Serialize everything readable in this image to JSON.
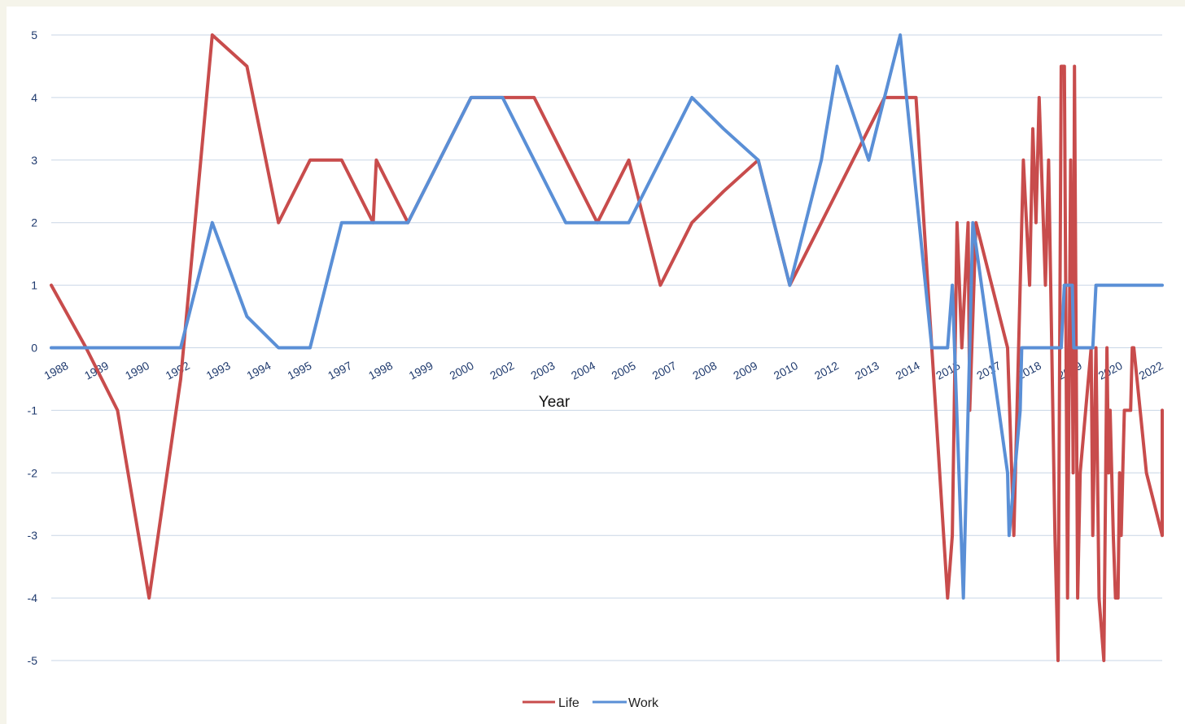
{
  "chart_data": {
    "type": "line",
    "title": "",
    "xlabel": "Year",
    "ylabel": "",
    "ylim": [
      -5,
      5
    ],
    "yticks": [
      5,
      4,
      3,
      2,
      1,
      0,
      -1,
      -2,
      -3,
      -4,
      -5
    ],
    "xlim": [
      1988,
      2023.2
    ],
    "xtick_labels": [
      {
        "label": "1988",
        "value": 1988.0
      },
      {
        "label": "1989",
        "value": 1989.28
      },
      {
        "label": "1990",
        "value": 1990.57
      },
      {
        "label": "1992",
        "value": 1991.85
      },
      {
        "label": "1993",
        "value": 1993.14
      },
      {
        "label": "1994",
        "value": 1994.42
      },
      {
        "label": "1995",
        "value": 1995.71
      },
      {
        "label": "1997",
        "value": 1996.99
      },
      {
        "label": "1998",
        "value": 1998.28
      },
      {
        "label": "1999",
        "value": 1999.56
      },
      {
        "label": "2000",
        "value": 2000.85
      },
      {
        "label": "2002",
        "value": 2002.13
      },
      {
        "label": "2003",
        "value": 2003.42
      },
      {
        "label": "2004",
        "value": 2004.7
      },
      {
        "label": "2005",
        "value": 2005.98
      },
      {
        "label": "2007",
        "value": 2007.27
      },
      {
        "label": "2008",
        "value": 2008.55
      },
      {
        "label": "2009",
        "value": 2009.84
      },
      {
        "label": "2010",
        "value": 2011.12
      },
      {
        "label": "2012",
        "value": 2012.41
      },
      {
        "label": "2013",
        "value": 2013.69
      },
      {
        "label": "2014",
        "value": 2014.98
      },
      {
        "label": "2015",
        "value": 2016.26
      },
      {
        "label": "2017",
        "value": 2017.55
      },
      {
        "label": "2018",
        "value": 2018.83
      },
      {
        "label": "2019",
        "value": 2020.12
      },
      {
        "label": "2020",
        "value": 2021.4
      },
      {
        "label": "2022",
        "value": 2022.69
      }
    ],
    "legend_position": "bottom-center",
    "grid": true,
    "series": [
      {
        "name": "Life",
        "color": "#c84c4c",
        "points": [
          [
            1988.0,
            1
          ],
          [
            1989.1,
            0
          ],
          [
            1990.1,
            -1
          ],
          [
            1991.1,
            -4
          ],
          [
            1992.1,
            -0.5
          ],
          [
            1993.1,
            5
          ],
          [
            1994.2,
            4.5
          ],
          [
            1995.2,
            2
          ],
          [
            1996.2,
            3
          ],
          [
            1997.2,
            3
          ],
          [
            1998.2,
            2
          ],
          [
            1998.3,
            3
          ],
          [
            1999.3,
            2
          ],
          [
            2000.3,
            3
          ],
          [
            2001.3,
            4
          ],
          [
            2002.3,
            4
          ],
          [
            2003.3,
            4
          ],
          [
            2004.3,
            3
          ],
          [
            2005.3,
            2
          ],
          [
            2006.3,
            3
          ],
          [
            2007.3,
            1
          ],
          [
            2008.3,
            2
          ],
          [
            2009.3,
            2.5
          ],
          [
            2010.4,
            3
          ],
          [
            2011.4,
            1
          ],
          [
            2012.4,
            2
          ],
          [
            2013.4,
            3
          ],
          [
            2014.4,
            4
          ],
          [
            2015.4,
            4
          ],
          [
            2016.4,
            -4
          ],
          [
            2016.55,
            -3
          ],
          [
            2016.7,
            2
          ],
          [
            2016.85,
            0
          ],
          [
            2017.05,
            2
          ],
          [
            2017.1,
            -1
          ],
          [
            2017.3,
            2
          ],
          [
            2018.3,
            0
          ],
          [
            2018.5,
            -3
          ],
          [
            2018.8,
            3
          ],
          [
            2019.0,
            1
          ],
          [
            2019.1,
            3.5
          ],
          [
            2019.2,
            2
          ],
          [
            2019.3,
            4
          ],
          [
            2019.5,
            1
          ],
          [
            2019.6,
            3
          ],
          [
            2019.8,
            -3
          ],
          [
            2019.9,
            -5
          ],
          [
            2020.0,
            4.5
          ],
          [
            2020.1,
            4.5
          ],
          [
            2020.2,
            -4
          ],
          [
            2020.3,
            3
          ],
          [
            2020.38,
            -2
          ],
          [
            2020.42,
            4.5
          ],
          [
            2020.52,
            -4
          ],
          [
            2020.6,
            -2
          ],
          [
            2020.95,
            0
          ],
          [
            2021.0,
            -3
          ],
          [
            2021.1,
            0
          ],
          [
            2021.2,
            -4
          ],
          [
            2021.35,
            -5
          ],
          [
            2021.45,
            0
          ],
          [
            2021.5,
            -2
          ],
          [
            2021.55,
            -1
          ],
          [
            2021.65,
            -3
          ],
          [
            2021.72,
            -4
          ],
          [
            2021.8,
            -4
          ],
          [
            2021.85,
            -2
          ],
          [
            2021.9,
            -3
          ],
          [
            2021.95,
            -2
          ],
          [
            2022.0,
            -1
          ],
          [
            2022.2,
            -1
          ],
          [
            2022.25,
            0
          ],
          [
            2022.3,
            0
          ],
          [
            2022.5,
            -1
          ],
          [
            2022.7,
            -2
          ],
          [
            2023.2,
            -3
          ],
          [
            2023.3,
            -2
          ],
          [
            2024.0,
            -1
          ]
        ]
      },
      {
        "name": "Work",
        "color": "#5a8fd6",
        "points": [
          [
            1988.0,
            0
          ],
          [
            1992.1,
            0
          ],
          [
            1993.1,
            2
          ],
          [
            1994.2,
            0.5
          ],
          [
            1995.2,
            0
          ],
          [
            1996.2,
            0
          ],
          [
            1997.2,
            2
          ],
          [
            1998.2,
            2
          ],
          [
            1999.3,
            2
          ],
          [
            2000.3,
            3
          ],
          [
            2001.3,
            4
          ],
          [
            2002.3,
            4
          ],
          [
            2003.3,
            3
          ],
          [
            2004.3,
            2
          ],
          [
            2005.3,
            2
          ],
          [
            2006.3,
            2
          ],
          [
            2007.3,
            3
          ],
          [
            2008.3,
            4
          ],
          [
            2009.3,
            3.5
          ],
          [
            2010.4,
            3
          ],
          [
            2010.9,
            2
          ],
          [
            2011.4,
            1
          ],
          [
            2012.4,
            3
          ],
          [
            2012.9,
            4.5
          ],
          [
            2013.9,
            3
          ],
          [
            2014.9,
            5
          ],
          [
            2015.9,
            0
          ],
          [
            2016.4,
            0
          ],
          [
            2016.55,
            1
          ],
          [
            2016.9,
            -4
          ],
          [
            2017.2,
            2
          ],
          [
            2018.3,
            -2
          ],
          [
            2018.35,
            -3
          ],
          [
            2018.7,
            -1
          ],
          [
            2018.75,
            0
          ],
          [
            2020.0,
            0
          ],
          [
            2020.1,
            1
          ],
          [
            2020.35,
            1
          ],
          [
            2020.4,
            0
          ],
          [
            2021.0,
            0
          ],
          [
            2021.1,
            1
          ],
          [
            2024.0,
            1
          ]
        ]
      }
    ]
  }
}
